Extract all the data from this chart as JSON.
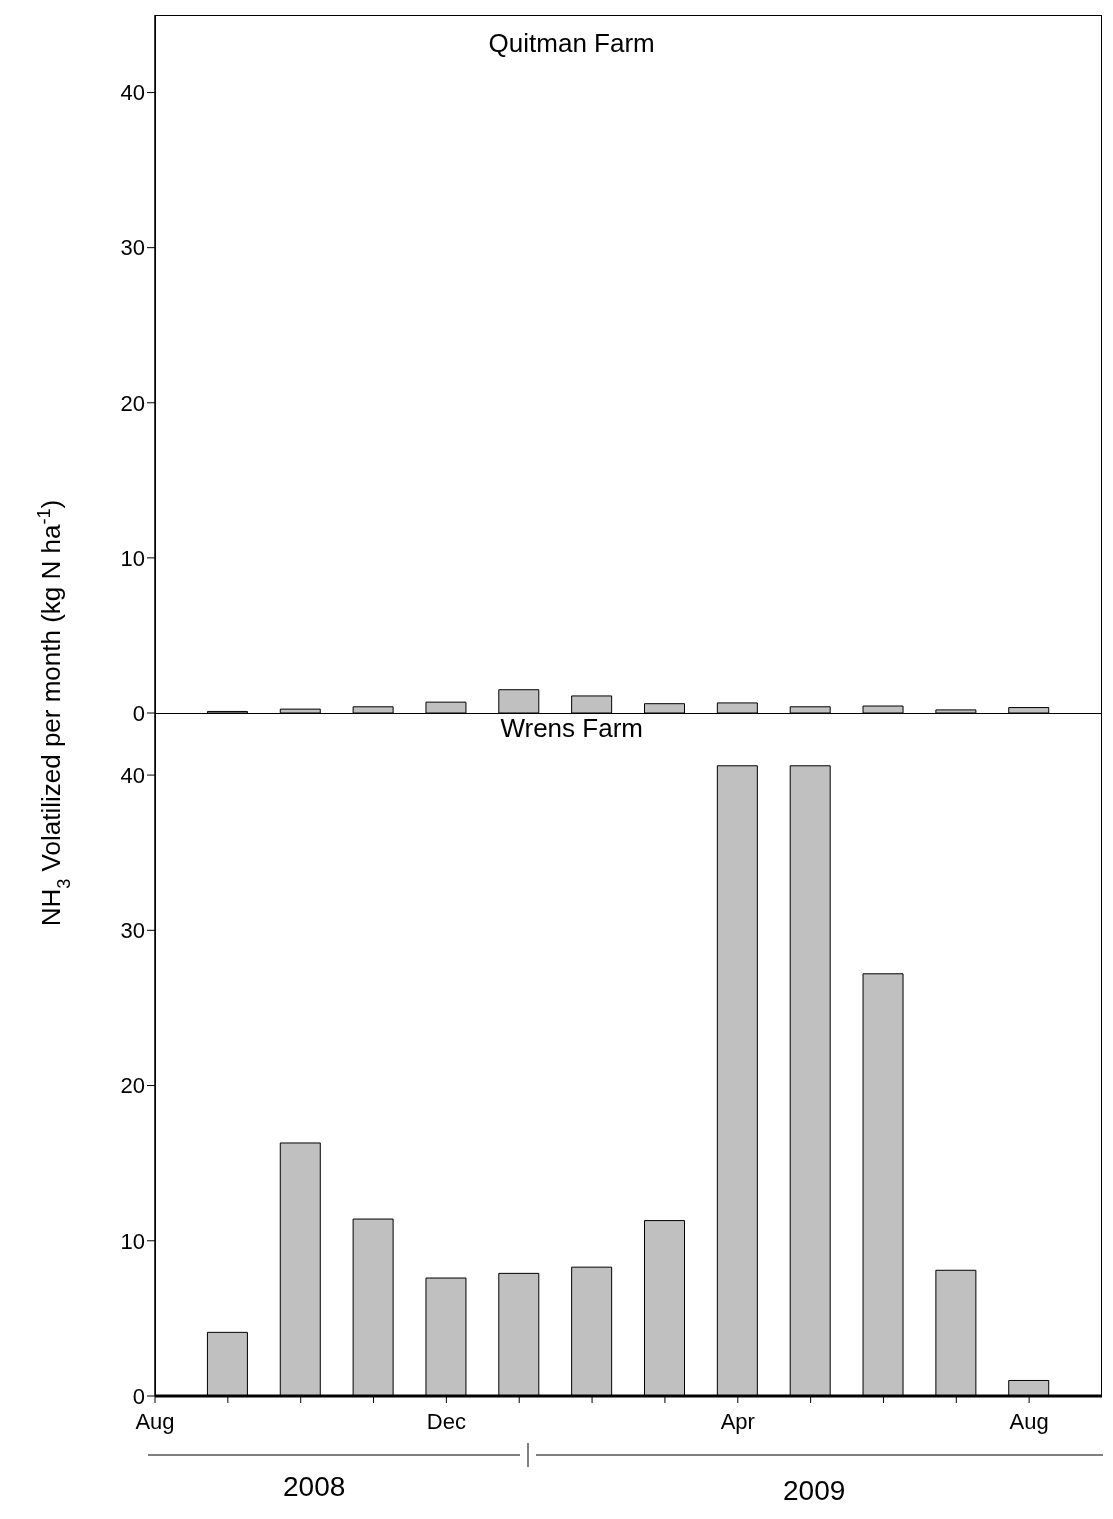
{
  "chart_data": [
    {
      "type": "bar",
      "title": "Quitman Farm",
      "ylabel": "NH$_{3}$ Volatilized per month (kg N ha$^{-1}$)",
      "x": [
        "2008-09",
        "2008-10",
        "2008-11",
        "2008-12",
        "2009-01",
        "2009-02",
        "2009-03",
        "2009-04",
        "2009-05",
        "2009-06",
        "2009-07",
        "2009-08"
      ],
      "values": [
        0.1,
        0.25,
        0.4,
        0.7,
        1.5,
        1.1,
        0.6,
        0.65,
        0.4,
        0.45,
        0.2,
        0.35
      ],
      "color": "#c0c0c0",
      "xlim": [
        "2008-08",
        "2009-09"
      ],
      "ylim": [
        0,
        45
      ],
      "yticks": [
        0,
        10,
        20,
        30,
        40
      ],
      "tick_labels": "y",
      "grid": false,
      "legend": false
    },
    {
      "type": "bar",
      "title": "Wrens Farm",
      "x": [
        "2008-09",
        "2008-10",
        "2008-11",
        "2008-12",
        "2009-01",
        "2009-02",
        "2009-03",
        "2009-04",
        "2009-05",
        "2009-06",
        "2009-07",
        "2009-08"
      ],
      "values": [
        4.1,
        16.3,
        11.4,
        7.6,
        7.9,
        8.3,
        11.3,
        40.6,
        40.6,
        27.2,
        8.1,
        1.0
      ],
      "color": "#c0c0c0",
      "xlim": [
        "2008-08",
        "2009-09"
      ],
      "ylim": [
        0,
        44
      ],
      "yticks": [
        0,
        10,
        20,
        30,
        40
      ],
      "xticks": [
        {
          "value": "2008-08",
          "label": "Aug"
        },
        {
          "value": "2008-09",
          "label": null
        },
        {
          "value": "2008-10",
          "label": null
        },
        {
          "value": "2008-11",
          "label": null
        },
        {
          "value": "2008-12",
          "label": "Dec"
        },
        {
          "value": "2009-01",
          "label": null
        },
        {
          "value": "2009-02",
          "label": null
        },
        {
          "value": "2009-03",
          "label": null
        },
        {
          "value": "2009-04",
          "label": "Apr"
        },
        {
          "value": "2009-05",
          "label": null
        },
        {
          "value": "2009-06",
          "label": null
        },
        {
          "value": "2009-07",
          "label": null
        },
        {
          "value": "2009-08",
          "label": "Aug"
        }
      ],
      "annotations": [
        "2008",
        "2009"
      ],
      "grid": false,
      "legend": false
    }
  ]
}
